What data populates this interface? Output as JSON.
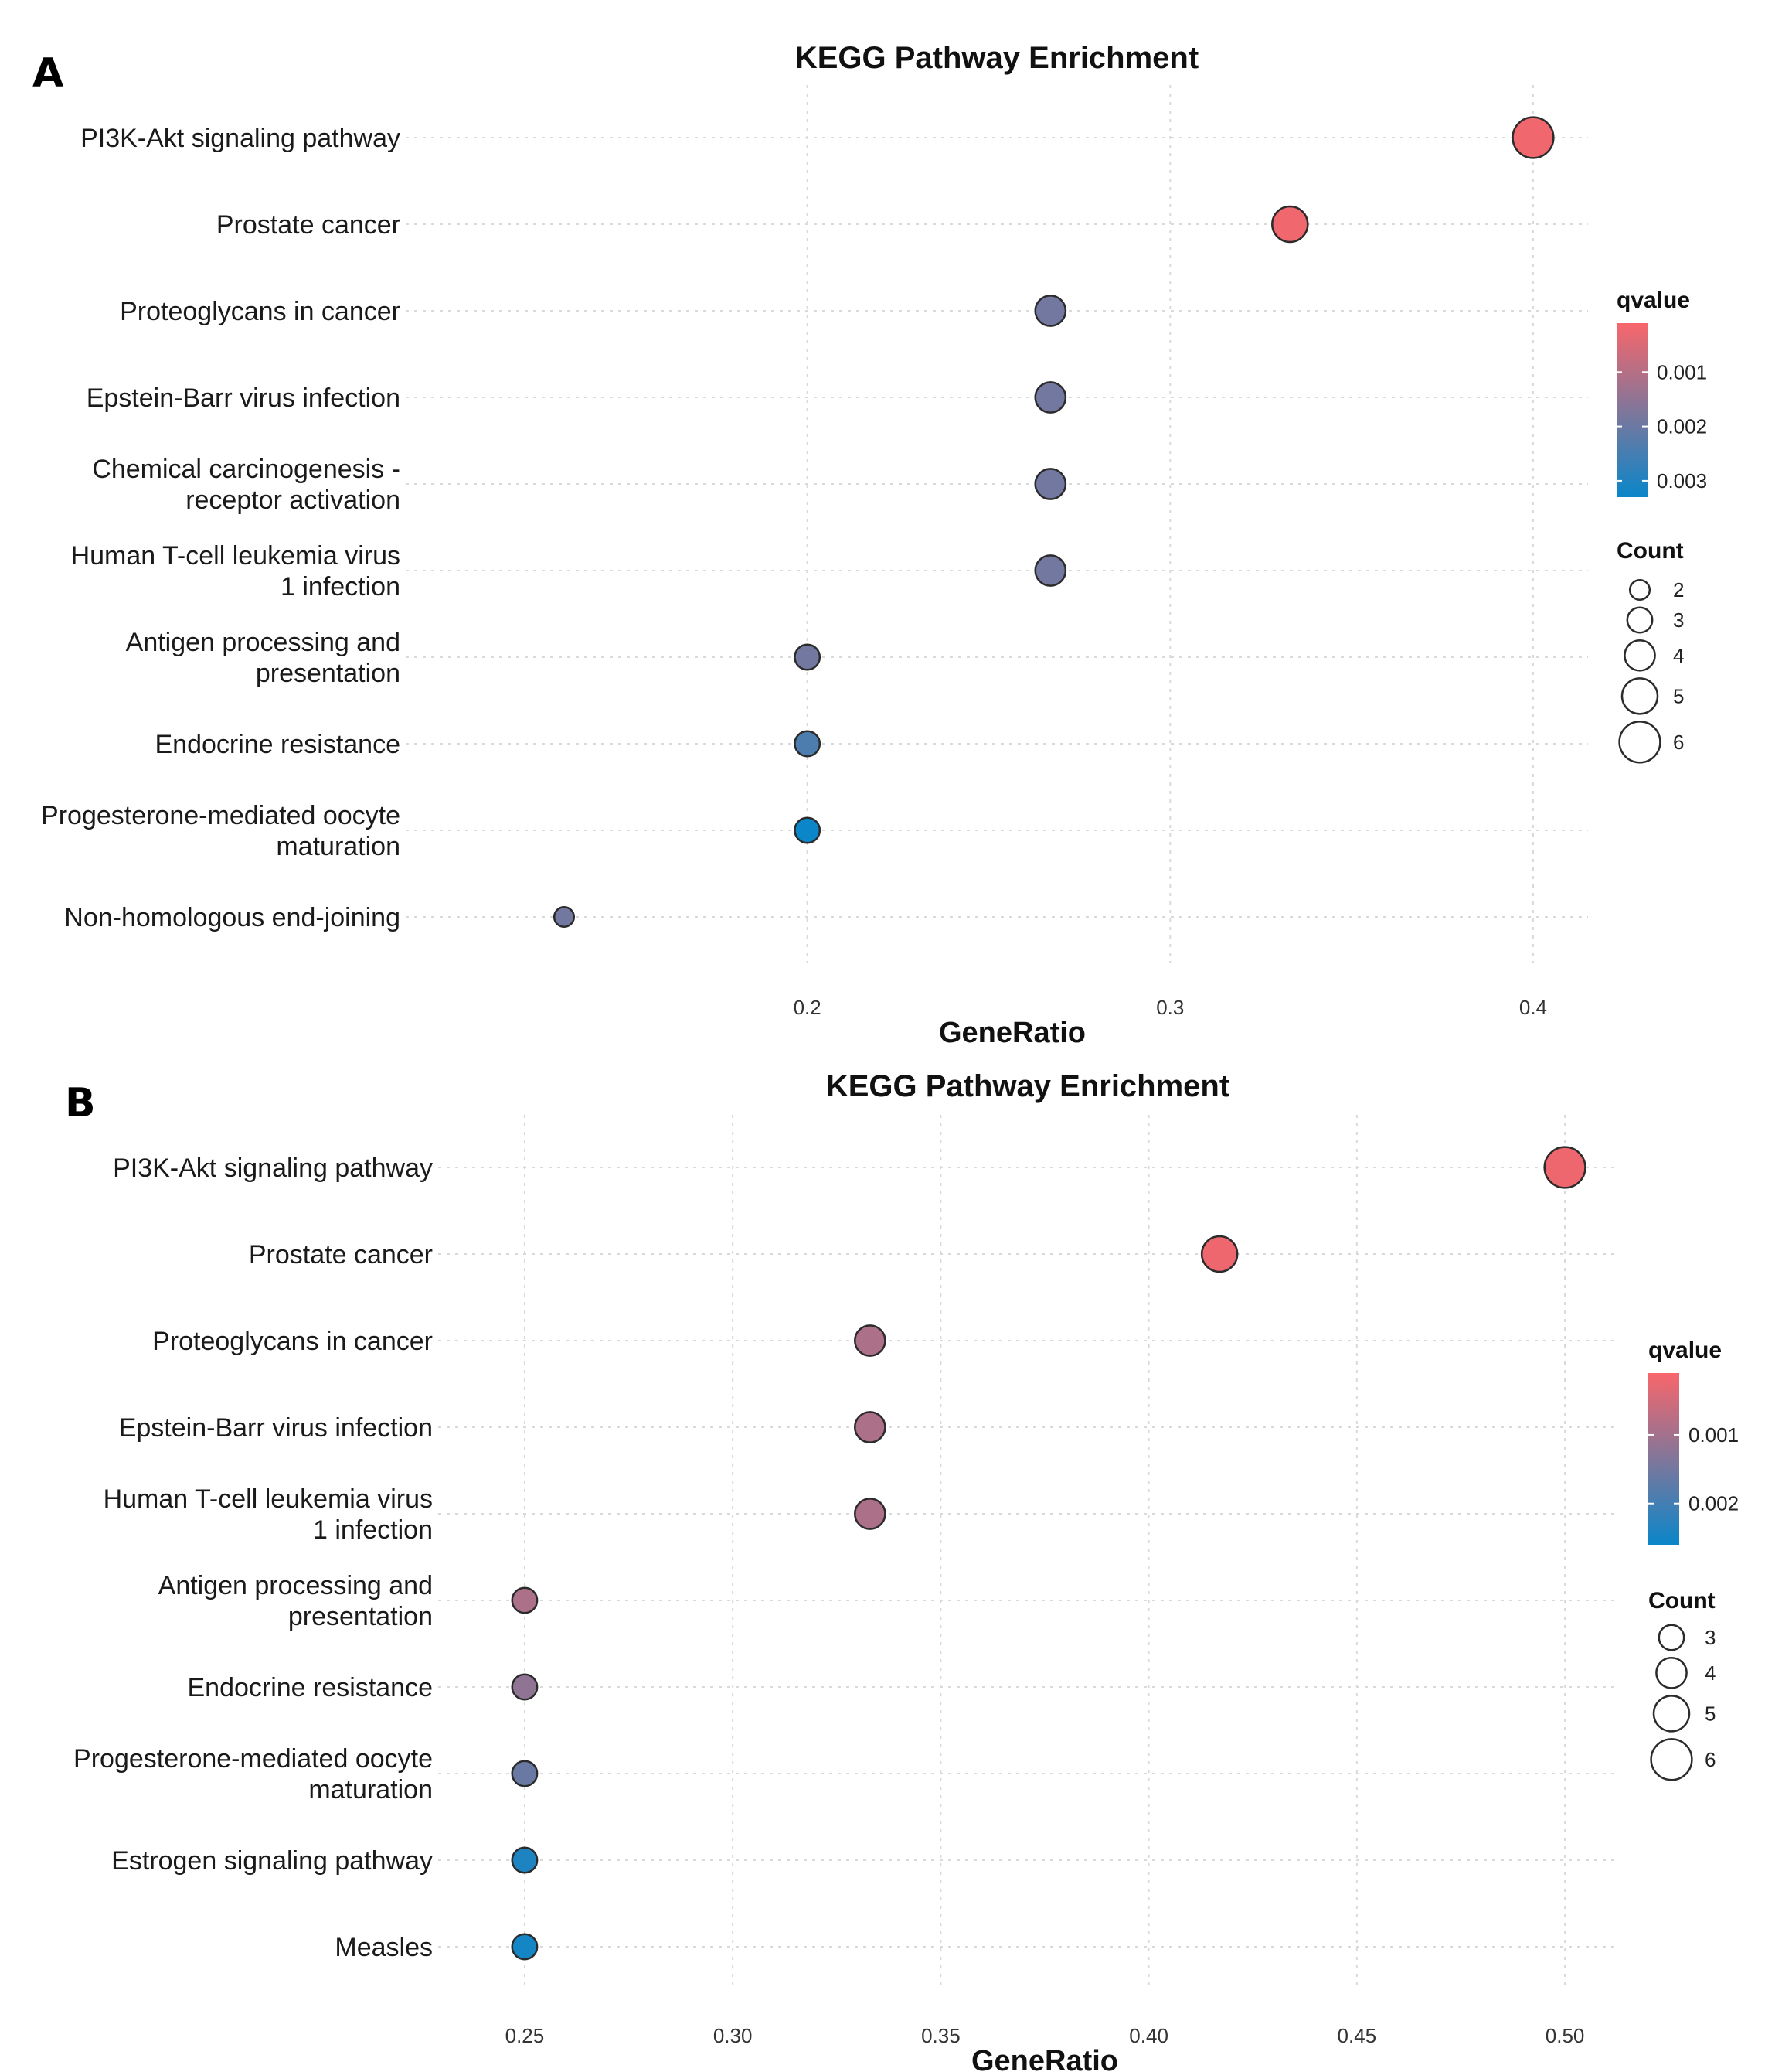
{
  "chart_data": [
    {
      "panel_label": "A",
      "type": "scatter",
      "title": "KEGG Pathway Enrichment",
      "xlabel": "GeneRatio",
      "ylabel": "",
      "xlim": [
        0.1,
        0.413
      ],
      "x_ticks": [
        0.2,
        0.3,
        0.4
      ],
      "x_tick_labels": [
        "0.2",
        "0.3",
        "0.4"
      ],
      "grid": true,
      "legend_position": "right",
      "color_legend": {
        "title": "qvalue",
        "range": [
          0.0001,
          0.0033
        ],
        "ticks": [
          0.001,
          0.002,
          0.003
        ],
        "tick_labels": [
          "0.001",
          "0.002",
          "0.003"
        ],
        "low_color": "#f8666b",
        "high_color": "#0a86c9"
      },
      "size_legend": {
        "title": "Count",
        "values": [
          2,
          3,
          4,
          5,
          6
        ],
        "labels": [
          "2",
          "3",
          "4",
          "5",
          "6"
        ]
      },
      "points": [
        {
          "term": "PI3K-Akt signaling pathway",
          "term_lines": [
            "PI3K-Akt signaling pathway"
          ],
          "x": 0.4,
          "count": 6,
          "qvalue": 0.0002
        },
        {
          "term": "Prostate cancer",
          "term_lines": [
            "Prostate cancer"
          ],
          "x": 0.333,
          "count": 5,
          "qvalue": 0.0002
        },
        {
          "term": "Proteoglycans in cancer",
          "term_lines": [
            "Proteoglycans in cancer"
          ],
          "x": 0.267,
          "count": 4,
          "qvalue": 0.0019
        },
        {
          "term": "Epstein-Barr virus infection",
          "term_lines": [
            "Epstein-Barr virus infection"
          ],
          "x": 0.267,
          "count": 4,
          "qvalue": 0.0019
        },
        {
          "term": "Chemical carcinogenesis - receptor activation",
          "term_lines": [
            "Chemical carcinogenesis -",
            "receptor activation"
          ],
          "x": 0.267,
          "count": 4,
          "qvalue": 0.0019
        },
        {
          "term": "Human T-cell leukemia virus 1 infection",
          "term_lines": [
            "Human T-cell leukemia virus",
            "1 infection"
          ],
          "x": 0.267,
          "count": 4,
          "qvalue": 0.0019
        },
        {
          "term": "Antigen processing and presentation",
          "term_lines": [
            "Antigen processing and",
            "presentation"
          ],
          "x": 0.2,
          "count": 3,
          "qvalue": 0.0019
        },
        {
          "term": "Endocrine resistance",
          "term_lines": [
            "Endocrine resistance"
          ],
          "x": 0.2,
          "count": 3,
          "qvalue": 0.0024
        },
        {
          "term": "Progesterone-mediated oocyte maturation",
          "term_lines": [
            "Progesterone-mediated oocyte",
            "maturation"
          ],
          "x": 0.2,
          "count": 3,
          "qvalue": 0.0033
        },
        {
          "term": "Non-homologous end-joining",
          "term_lines": [
            "Non-homologous end-joining"
          ],
          "x": 0.133,
          "count": 2,
          "qvalue": 0.0019
        }
      ]
    },
    {
      "panel_label": "B",
      "type": "scatter",
      "title": "KEGG Pathway Enrichment",
      "xlabel": "GeneRatio",
      "ylabel": "",
      "xlim": [
        0.2385,
        0.5115
      ],
      "x_ticks": [
        0.25,
        0.3,
        0.35,
        0.4,
        0.45,
        0.5
      ],
      "x_tick_labels": [
        "0.25",
        "0.30",
        "0.35",
        "0.40",
        "0.45",
        "0.50"
      ],
      "grid": true,
      "legend_position": "right",
      "color_legend": {
        "title": "qvalue",
        "range": [
          0.0001,
          0.0026
        ],
        "ticks": [
          0.001,
          0.002
        ],
        "tick_labels": [
          "0.001",
          "0.002"
        ],
        "low_color": "#f8666b",
        "high_color": "#0a86c9"
      },
      "size_legend": {
        "title": "Count",
        "values": [
          3,
          4,
          5,
          6
        ],
        "labels": [
          "3",
          "4",
          "5",
          "6"
        ]
      },
      "points": [
        {
          "term": "PI3K-Akt signaling pathway",
          "term_lines": [
            "PI3K-Akt signaling pathway"
          ],
          "x": 0.5,
          "count": 6,
          "qvalue": 0.0002
        },
        {
          "term": "Prostate cancer",
          "term_lines": [
            "Prostate cancer"
          ],
          "x": 0.417,
          "count": 5,
          "qvalue": 0.0002
        },
        {
          "term": "Proteoglycans in cancer",
          "term_lines": [
            "Proteoglycans in cancer"
          ],
          "x": 0.333,
          "count": 4,
          "qvalue": 0.0009
        },
        {
          "term": "Epstein-Barr virus infection",
          "term_lines": [
            "Epstein-Barr virus infection"
          ],
          "x": 0.333,
          "count": 4,
          "qvalue": 0.0009
        },
        {
          "term": "Human T-cell leukemia virus 1 infection",
          "term_lines": [
            "Human T-cell leukemia virus",
            "1 infection"
          ],
          "x": 0.333,
          "count": 4,
          "qvalue": 0.0009
        },
        {
          "term": "Antigen processing and presentation",
          "term_lines": [
            "Antigen processing and",
            "presentation"
          ],
          "x": 0.25,
          "count": 3,
          "qvalue": 0.0009
        },
        {
          "term": "Endocrine resistance",
          "term_lines": [
            "Endocrine resistance"
          ],
          "x": 0.25,
          "count": 3,
          "qvalue": 0.0012
        },
        {
          "term": "Progesterone-mediated oocyte maturation",
          "term_lines": [
            "Progesterone-mediated oocyte",
            "maturation"
          ],
          "x": 0.25,
          "count": 3,
          "qvalue": 0.0016
        },
        {
          "term": "Estrogen signaling pathway",
          "term_lines": [
            "Estrogen signaling pathway"
          ],
          "x": 0.25,
          "count": 3,
          "qvalue": 0.0024
        },
        {
          "term": "Measles",
          "term_lines": [
            "Measles"
          ],
          "x": 0.25,
          "count": 3,
          "qvalue": 0.0025
        }
      ]
    }
  ]
}
